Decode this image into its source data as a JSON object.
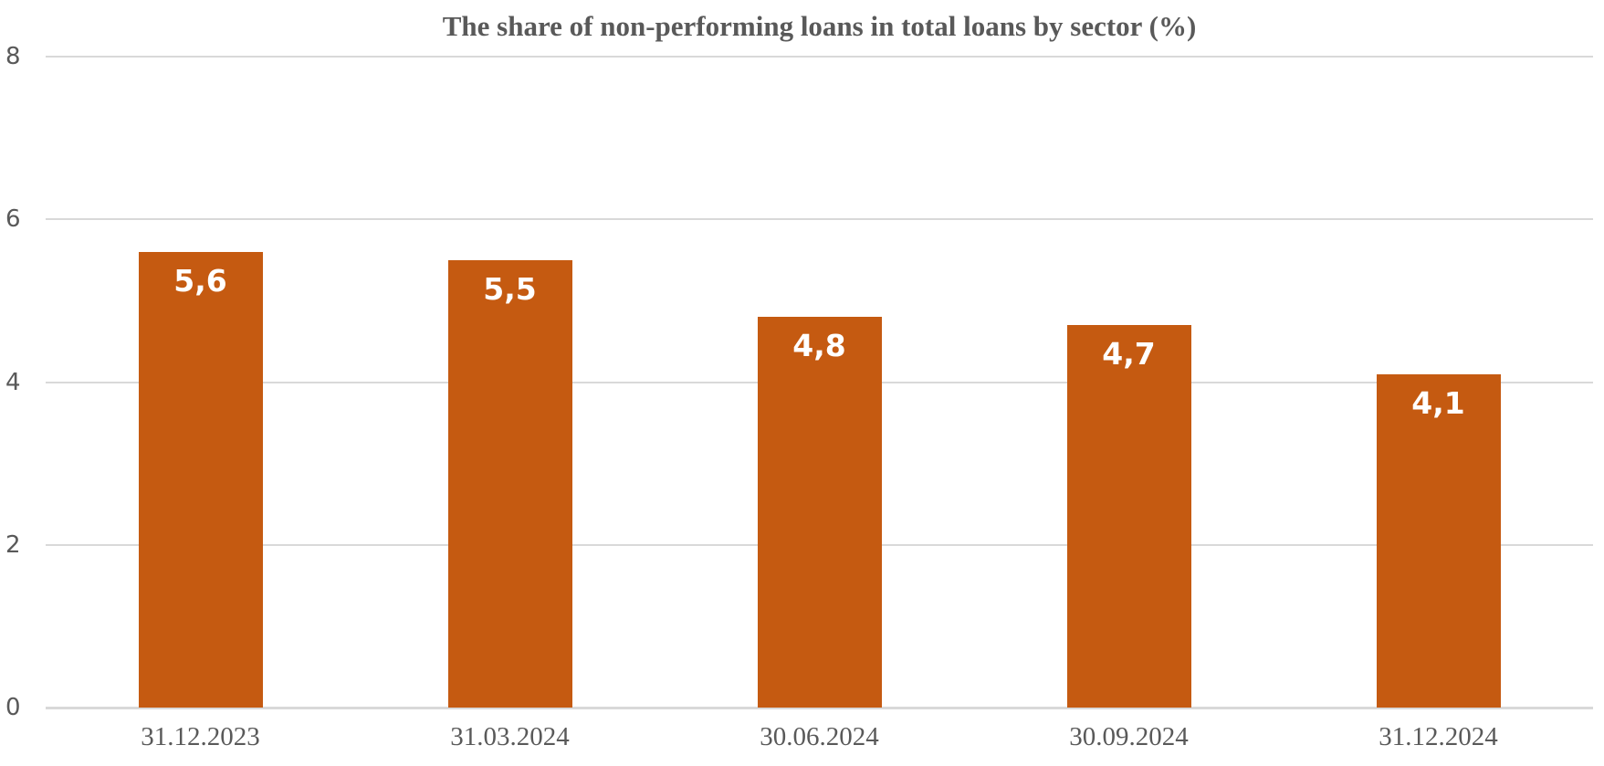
{
  "chart_data": {
    "type": "bar",
    "title": "The share of non-performing loans in total loans by sector (%)",
    "categories": [
      "31.12.2023",
      "31.03.2024",
      "30.06.2024",
      "30.09.2024",
      "31.12.2024"
    ],
    "values": [
      5.6,
      5.5,
      4.8,
      4.7,
      4.1
    ],
    "value_labels": [
      "5,6",
      "5,5",
      "4,8",
      "4,7",
      "4,1"
    ],
    "xlabel": "",
    "ylabel": "",
    "ylim": [
      0,
      8
    ],
    "yticks": [
      0,
      2,
      4,
      6,
      8
    ],
    "grid": true,
    "legend": false,
    "value_label_position": "inside-end",
    "colors": {
      "bar": "#C55A11",
      "value_label": "#FFFFFF",
      "title_text": "#595959",
      "axis_text": "#595959",
      "gridline": "#D9D9D9",
      "axis_line": "#D9D9D9",
      "background": "#FFFFFF"
    }
  }
}
